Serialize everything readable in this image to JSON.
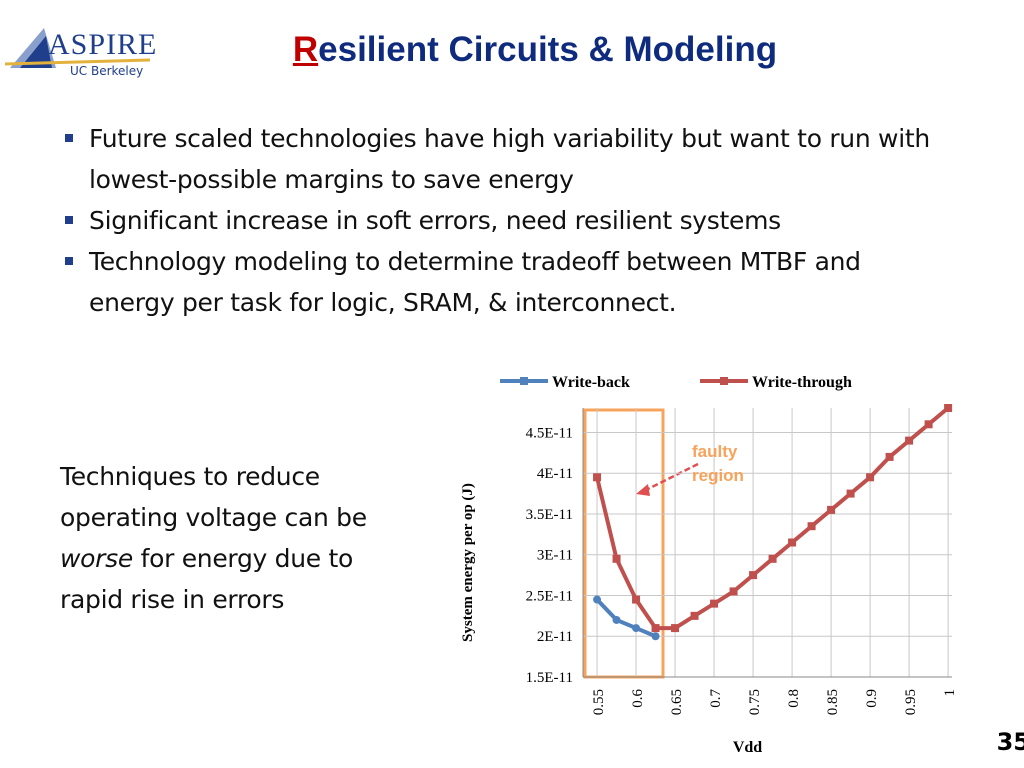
{
  "logo": {
    "name": "ASPIRE",
    "subtitle": "UC Berkeley"
  },
  "title": {
    "initial": "R",
    "rest": "esilient Circuits & Modeling"
  },
  "bullets": [
    "Future scaled technologies have high variability but want to run with lowest-possible margins to save energy",
    "Significant increase in soft errors, need resilient systems",
    "Technology modeling to determine tradeoff between MTBF and energy per task for logic, SRAM, & interconnect."
  ],
  "side_text": {
    "before": "Techniques to reduce operating voltage can be",
    "emphasis": "worse",
    "after": "for energy due to rapid rise in errors"
  },
  "page_number": "35",
  "chart_data": {
    "type": "line",
    "xlabel": "Vdd",
    "ylabel": "System energy per op (J)",
    "annotation": "faulty region",
    "x": [
      0.55,
      0.575,
      0.6,
      0.625,
      0.65,
      0.675,
      0.7,
      0.725,
      0.75,
      0.775,
      0.8,
      0.825,
      0.85,
      0.875,
      0.9,
      0.925,
      0.95,
      0.975,
      1.0
    ],
    "series": [
      {
        "name": "Write-back",
        "color": "#4f81bd",
        "values": [
          2.45e-11,
          2.2e-11,
          2.1e-11,
          2e-11,
          null,
          null,
          null,
          null,
          null,
          null,
          null,
          null,
          null,
          null,
          null,
          null,
          null,
          null,
          null
        ]
      },
      {
        "name": "Write-through",
        "color": "#c0504d",
        "values": [
          3.95e-11,
          2.95e-11,
          2.45e-11,
          2.1e-11,
          2.1e-11,
          2.25e-11,
          2.4e-11,
          2.55e-11,
          2.75e-11,
          2.95e-11,
          3.15e-11,
          3.35e-11,
          3.55e-11,
          3.75e-11,
          3.95e-11,
          4.2e-11,
          4.4e-11,
          4.6e-11,
          4.8e-11
        ]
      }
    ],
    "xlim": [
      0.532,
      1.005
    ],
    "xticks": [
      0.55,
      0.6,
      0.65,
      0.7,
      0.75,
      0.8,
      0.85,
      0.9,
      0.95,
      1
    ],
    "ylim": [
      1.5e-11,
      4.8e-11
    ],
    "yticks": [
      {
        "value": 1.5e-11,
        "label": "1.5E-11"
      },
      {
        "value": 2e-11,
        "label": "2E-11"
      },
      {
        "value": 2.5e-11,
        "label": "2.5E-11"
      },
      {
        "value": 3e-11,
        "label": "3E-11"
      },
      {
        "value": 3.5e-11,
        "label": "3.5E-11"
      },
      {
        "value": 4e-11,
        "label": "4E-11"
      },
      {
        "value": 4.5e-11,
        "label": "4.5E-11"
      }
    ],
    "grid": true,
    "legend": "top"
  }
}
